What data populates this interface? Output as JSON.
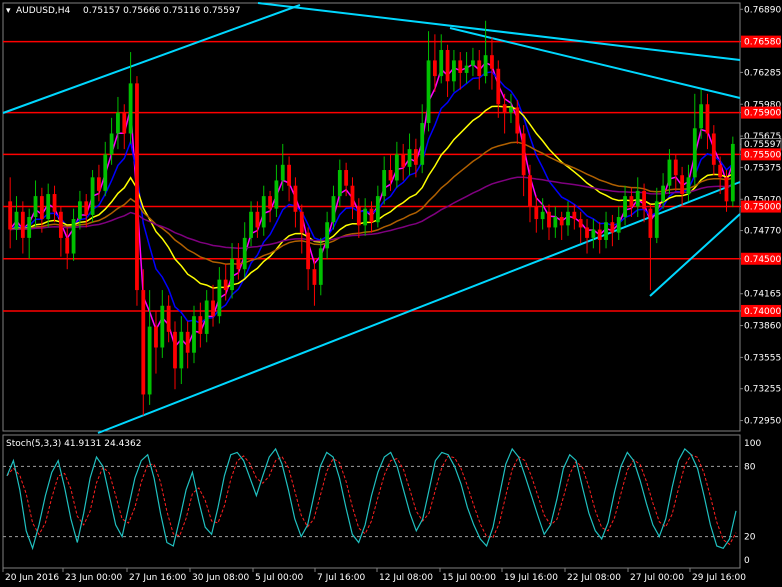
{
  "header": {
    "symbol_label": "AUDUSD,H4",
    "ohlc": "0.75157 0.75666 0.75116 0.75597"
  },
  "stoch_header": {
    "label": "Stoch(5,3,3) 41.9131 24.4362"
  },
  "colors": {
    "background": "#000000",
    "bull": "#00c000",
    "bear": "#ff0000",
    "trendline": "#00d8ff",
    "hline": "#ff0000",
    "ma_magenta": "#ff00ff",
    "ma_blue": "#0000ff",
    "ma_yellow": "#ffff00",
    "ma_brown": "#b06000",
    "ma_purple": "#800080",
    "stoch_main": "#20c0c0",
    "stoch_signal": "#ff2020"
  },
  "chart_data": {
    "type": "candlestick",
    "symbol": "AUDUSD",
    "timeframe": "H4",
    "ylim": [
      0.7285,
      0.7695
    ],
    "y_ticks": [
      "0.76890",
      "0.76580",
      "0.76285",
      "0.75980",
      "0.75900",
      "0.75675",
      "0.75597",
      "0.75500",
      "0.75375",
      "0.75070",
      "0.75000",
      "0.74770",
      "0.74500",
      "0.74165",
      "0.74000",
      "0.73860",
      "0.73555",
      "0.73255",
      "0.72950"
    ],
    "x_ticks": [
      "20 Jun 2016",
      "23 Jun 00:00",
      "27 Jun 16:00",
      "30 Jun 08:00",
      "5 Jul 00:00",
      "7 Jul 16:00",
      "12 Jul 08:00",
      "15 Jul 00:00",
      "19 Jul 16:00",
      "22 Jul 08:00",
      "27 Jul 00:00",
      "29 Jul 16:00"
    ],
    "horizontal_levels": [
      {
        "value": 0.7658,
        "label": "0.76580"
      },
      {
        "value": 0.759,
        "label": "0.75900"
      },
      {
        "value": 0.755,
        "label": "0.75500"
      },
      {
        "value": 0.75,
        "label": "0.75000"
      },
      {
        "value": 0.745,
        "label": "0.74500"
      },
      {
        "value": 0.74,
        "label": "0.74000"
      }
    ],
    "current_price": {
      "value": 0.75597,
      "label": "0.75597"
    },
    "candles": [
      [
        0.7505,
        0.7478,
        0.7528,
        0.746
      ],
      [
        0.7478,
        0.7495,
        0.751,
        0.7468
      ],
      [
        0.7495,
        0.747,
        0.7505,
        0.7455
      ],
      [
        0.747,
        0.749,
        0.7498,
        0.745
      ],
      [
        0.749,
        0.751,
        0.7525,
        0.748
      ],
      [
        0.751,
        0.7488,
        0.7518,
        0.7475
      ],
      [
        0.7488,
        0.7512,
        0.7522,
        0.748
      ],
      [
        0.7512,
        0.7495,
        0.752,
        0.7485
      ],
      [
        0.7495,
        0.747,
        0.75,
        0.7452
      ],
      [
        0.747,
        0.7455,
        0.748,
        0.744
      ],
      [
        0.7455,
        0.7488,
        0.7498,
        0.7448
      ],
      [
        0.7488,
        0.7505,
        0.7515,
        0.7478
      ],
      [
        0.7505,
        0.7492,
        0.7512,
        0.748
      ],
      [
        0.7492,
        0.7528,
        0.7535,
        0.7485
      ],
      [
        0.7528,
        0.7515,
        0.754,
        0.7505
      ],
      [
        0.7515,
        0.755,
        0.7562,
        0.751
      ],
      [
        0.755,
        0.757,
        0.7585,
        0.754
      ],
      [
        0.757,
        0.759,
        0.7605,
        0.7555
      ],
      [
        0.759,
        0.757,
        0.7598,
        0.7555
      ],
      [
        0.757,
        0.7618,
        0.7648,
        0.756
      ],
      [
        0.7618,
        0.742,
        0.7625,
        0.7405
      ],
      [
        0.742,
        0.732,
        0.744,
        0.73
      ],
      [
        0.732,
        0.7385,
        0.742,
        0.731
      ],
      [
        0.7385,
        0.7365,
        0.74,
        0.734
      ],
      [
        0.7365,
        0.7405,
        0.742,
        0.7355
      ],
      [
        0.7405,
        0.738,
        0.7415,
        0.737
      ],
      [
        0.738,
        0.7345,
        0.739,
        0.7325
      ],
      [
        0.7345,
        0.738,
        0.7395,
        0.733
      ],
      [
        0.738,
        0.736,
        0.739,
        0.7345
      ],
      [
        0.736,
        0.7395,
        0.7405,
        0.735
      ],
      [
        0.7395,
        0.7378,
        0.7408,
        0.7365
      ],
      [
        0.7378,
        0.741,
        0.742,
        0.737
      ],
      [
        0.741,
        0.7395,
        0.7425,
        0.7385
      ],
      [
        0.7395,
        0.743,
        0.7442,
        0.7388
      ],
      [
        0.743,
        0.742,
        0.7445,
        0.741
      ],
      [
        0.742,
        0.745,
        0.7465,
        0.7412
      ],
      [
        0.745,
        0.744,
        0.7465,
        0.743
      ],
      [
        0.744,
        0.747,
        0.7485,
        0.7432
      ],
      [
        0.747,
        0.7495,
        0.7505,
        0.7462
      ],
      [
        0.7495,
        0.748,
        0.7505,
        0.747
      ],
      [
        0.748,
        0.751,
        0.752,
        0.7472
      ],
      [
        0.751,
        0.7498,
        0.7515,
        0.7485
      ],
      [
        0.7498,
        0.7525,
        0.754,
        0.749
      ],
      [
        0.7525,
        0.754,
        0.756,
        0.7515
      ],
      [
        0.754,
        0.752,
        0.7548,
        0.7505
      ],
      [
        0.752,
        0.7495,
        0.7528,
        0.748
      ],
      [
        0.7495,
        0.7475,
        0.7502,
        0.7455
      ],
      [
        0.7475,
        0.744,
        0.748,
        0.742
      ],
      [
        0.744,
        0.7425,
        0.745,
        0.7405
      ],
      [
        0.7425,
        0.746,
        0.747,
        0.7415
      ],
      [
        0.746,
        0.7485,
        0.7495,
        0.745
      ],
      [
        0.7485,
        0.751,
        0.752,
        0.7478
      ],
      [
        0.751,
        0.7535,
        0.7545,
        0.75
      ],
      [
        0.7535,
        0.752,
        0.7542,
        0.751
      ],
      [
        0.752,
        0.75,
        0.7528,
        0.7488
      ],
      [
        0.75,
        0.7482,
        0.7508,
        0.747
      ],
      [
        0.7482,
        0.7498,
        0.7508,
        0.7472
      ],
      [
        0.7498,
        0.7485,
        0.7505,
        0.7475
      ],
      [
        0.7485,
        0.751,
        0.752,
        0.748
      ],
      [
        0.751,
        0.7535,
        0.7548,
        0.7502
      ],
      [
        0.7535,
        0.7525,
        0.755,
        0.7515
      ],
      [
        0.7525,
        0.755,
        0.7562,
        0.7518
      ],
      [
        0.755,
        0.7538,
        0.756,
        0.7525
      ],
      [
        0.7538,
        0.7555,
        0.757,
        0.753
      ],
      [
        0.7555,
        0.754,
        0.7565,
        0.7528
      ],
      [
        0.754,
        0.758,
        0.7598,
        0.7532
      ],
      [
        0.758,
        0.764,
        0.7668,
        0.7572
      ],
      [
        0.764,
        0.7625,
        0.7665,
        0.761
      ],
      [
        0.7625,
        0.765,
        0.7665,
        0.7618
      ],
      [
        0.765,
        0.762,
        0.7655,
        0.7605
      ],
      [
        0.762,
        0.764,
        0.765,
        0.761
      ],
      [
        0.764,
        0.7628,
        0.7648,
        0.7612
      ],
      [
        0.7628,
        0.7635,
        0.7648,
        0.7618
      ],
      [
        0.7635,
        0.764,
        0.7652,
        0.7625
      ],
      [
        0.764,
        0.7625,
        0.765,
        0.7612
      ],
      [
        0.7625,
        0.7645,
        0.7678,
        0.7618
      ],
      [
        0.7645,
        0.7632,
        0.7662,
        0.7612
      ],
      [
        0.7632,
        0.7598,
        0.764,
        0.7585
      ],
      [
        0.7598,
        0.759,
        0.7608,
        0.757
      ],
      [
        0.759,
        0.7595,
        0.7608,
        0.758
      ],
      [
        0.7595,
        0.757,
        0.7602,
        0.756
      ],
      [
        0.757,
        0.753,
        0.7578,
        0.751
      ],
      [
        0.753,
        0.75,
        0.754,
        0.7485
      ],
      [
        0.75,
        0.7488,
        0.751,
        0.7475
      ],
      [
        0.7488,
        0.7495,
        0.7508,
        0.7478
      ],
      [
        0.7495,
        0.748,
        0.7502,
        0.7468
      ],
      [
        0.748,
        0.749,
        0.75,
        0.747
      ],
      [
        0.749,
        0.7482,
        0.7495,
        0.7468
      ],
      [
        0.7482,
        0.7495,
        0.7505,
        0.7472
      ],
      [
        0.7495,
        0.7488,
        0.7502,
        0.7478
      ],
      [
        0.7488,
        0.748,
        0.7495,
        0.7465
      ],
      [
        0.748,
        0.747,
        0.7488,
        0.7455
      ],
      [
        0.747,
        0.7478,
        0.7488,
        0.746
      ],
      [
        0.7478,
        0.7468,
        0.7485,
        0.7455
      ],
      [
        0.7468,
        0.7485,
        0.7495,
        0.746
      ],
      [
        0.7485,
        0.7475,
        0.7492,
        0.7462
      ],
      [
        0.7475,
        0.749,
        0.75,
        0.7468
      ],
      [
        0.749,
        0.751,
        0.752,
        0.7482
      ],
      [
        0.751,
        0.75,
        0.7518,
        0.749
      ],
      [
        0.75,
        0.7515,
        0.7528,
        0.749
      ],
      [
        0.7515,
        0.7498,
        0.7522,
        0.7485
      ],
      [
        0.7498,
        0.747,
        0.7502,
        0.742
      ],
      [
        0.747,
        0.7505,
        0.7518,
        0.7465
      ],
      [
        0.7505,
        0.752,
        0.7532,
        0.7498
      ],
      [
        0.752,
        0.7545,
        0.7555,
        0.7512
      ],
      [
        0.7545,
        0.753,
        0.755,
        0.7515
      ],
      [
        0.753,
        0.7512,
        0.7538,
        0.75
      ],
      [
        0.7512,
        0.7528,
        0.754,
        0.7505
      ],
      [
        0.7528,
        0.7575,
        0.7608,
        0.752
      ],
      [
        0.7575,
        0.7598,
        0.7612,
        0.7565
      ],
      [
        0.7598,
        0.757,
        0.7608,
        0.7555
      ],
      [
        0.757,
        0.754,
        0.7578,
        0.753
      ],
      [
        0.754,
        0.7528,
        0.7548,
        0.7512
      ],
      [
        0.7528,
        0.7505,
        0.7535,
        0.7495
      ],
      [
        0.7505,
        0.756,
        0.7567,
        0.75
      ]
    ],
    "stochastic": {
      "label": "Stoch(5,3,3)",
      "main_value": 41.9131,
      "signal_value": 24.4362,
      "levels": [
        80,
        20
      ],
      "ylim": [
        0,
        100
      ],
      "y_ticks": [
        "100",
        "80",
        "20",
        "0"
      ],
      "main": [
        72,
        85,
        60,
        25,
        10,
        30,
        55,
        75,
        85,
        62,
        35,
        15,
        40,
        70,
        88,
        80,
        55,
        30,
        20,
        45,
        70,
        85,
        90,
        70,
        40,
        15,
        12,
        35,
        60,
        75,
        50,
        28,
        22,
        45,
        72,
        90,
        92,
        85,
        70,
        55,
        72,
        88,
        95,
        82,
        60,
        35,
        20,
        30,
        55,
        80,
        92,
        88,
        70,
        45,
        22,
        15,
        30,
        55,
        75,
        88,
        92,
        80,
        60,
        40,
        25,
        35,
        60,
        85,
        92,
        90,
        80,
        65,
        45,
        30,
        18,
        12,
        28,
        55,
        82,
        95,
        88,
        72,
        55,
        38,
        22,
        30,
        52,
        78,
        90,
        85,
        62,
        40,
        25,
        18,
        32,
        58,
        80,
        92,
        85,
        68,
        48,
        30,
        20,
        35,
        62,
        85,
        95,
        90,
        78,
        55,
        30,
        12,
        10,
        18,
        42
      ]
    }
  }
}
